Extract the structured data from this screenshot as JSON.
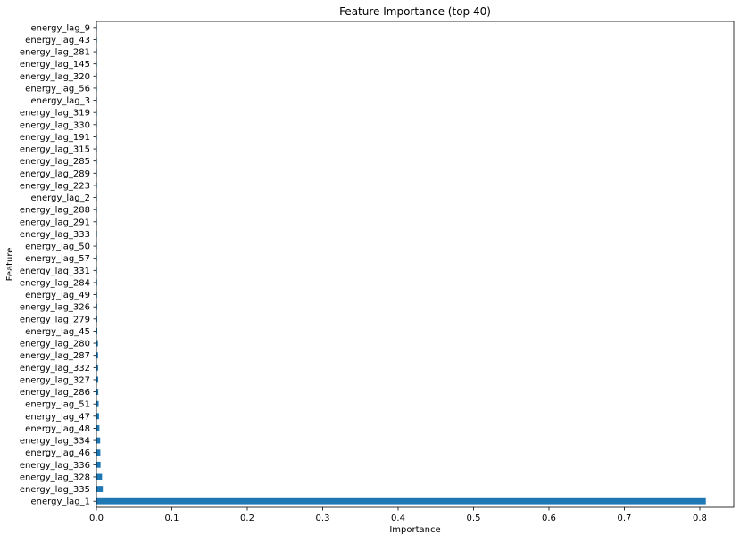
{
  "chart_data": {
    "type": "bar",
    "orientation": "horizontal",
    "title": "Feature Importance (top 40)",
    "xlabel": "Importance",
    "ylabel": "Feature",
    "xlim": [
      0,
      0.845
    ],
    "xticks": [
      "0.0",
      "0.1",
      "0.2",
      "0.3",
      "0.4",
      "0.5",
      "0.6",
      "0.7",
      "0.8"
    ],
    "grid": false,
    "bar_color": "#1f77b4",
    "categories": [
      "energy_lag_1",
      "energy_lag_335",
      "energy_lag_328",
      "energy_lag_336",
      "energy_lag_46",
      "energy_lag_334",
      "energy_lag_48",
      "energy_lag_47",
      "energy_lag_51",
      "energy_lag_286",
      "energy_lag_327",
      "energy_lag_332",
      "energy_lag_287",
      "energy_lag_280",
      "energy_lag_45",
      "energy_lag_279",
      "energy_lag_326",
      "energy_lag_49",
      "energy_lag_284",
      "energy_lag_331",
      "energy_lag_57",
      "energy_lag_50",
      "energy_lag_333",
      "energy_lag_291",
      "energy_lag_288",
      "energy_lag_2",
      "energy_lag_223",
      "energy_lag_289",
      "energy_lag_285",
      "energy_lag_315",
      "energy_lag_191",
      "energy_lag_330",
      "energy_lag_319",
      "energy_lag_3",
      "energy_lag_56",
      "energy_lag_320",
      "energy_lag_145",
      "energy_lag_281",
      "energy_lag_43",
      "energy_lag_9"
    ],
    "values": [
      0.808,
      0.0085,
      0.0075,
      0.0055,
      0.0052,
      0.005,
      0.004,
      0.0035,
      0.003,
      0.0025,
      0.0024,
      0.0023,
      0.0022,
      0.0021,
      0.0012,
      0.0011,
      0.001,
      0.0009,
      0.0009,
      0.0008,
      0.0008,
      0.0007,
      0.0007,
      0.0007,
      0.0006,
      0.0006,
      0.0006,
      0.0005,
      0.0005,
      0.0005,
      0.0005,
      0.0004,
      0.0004,
      0.0004,
      0.0004,
      0.0003,
      0.0003,
      0.0003,
      0.0003,
      0.0003
    ]
  }
}
